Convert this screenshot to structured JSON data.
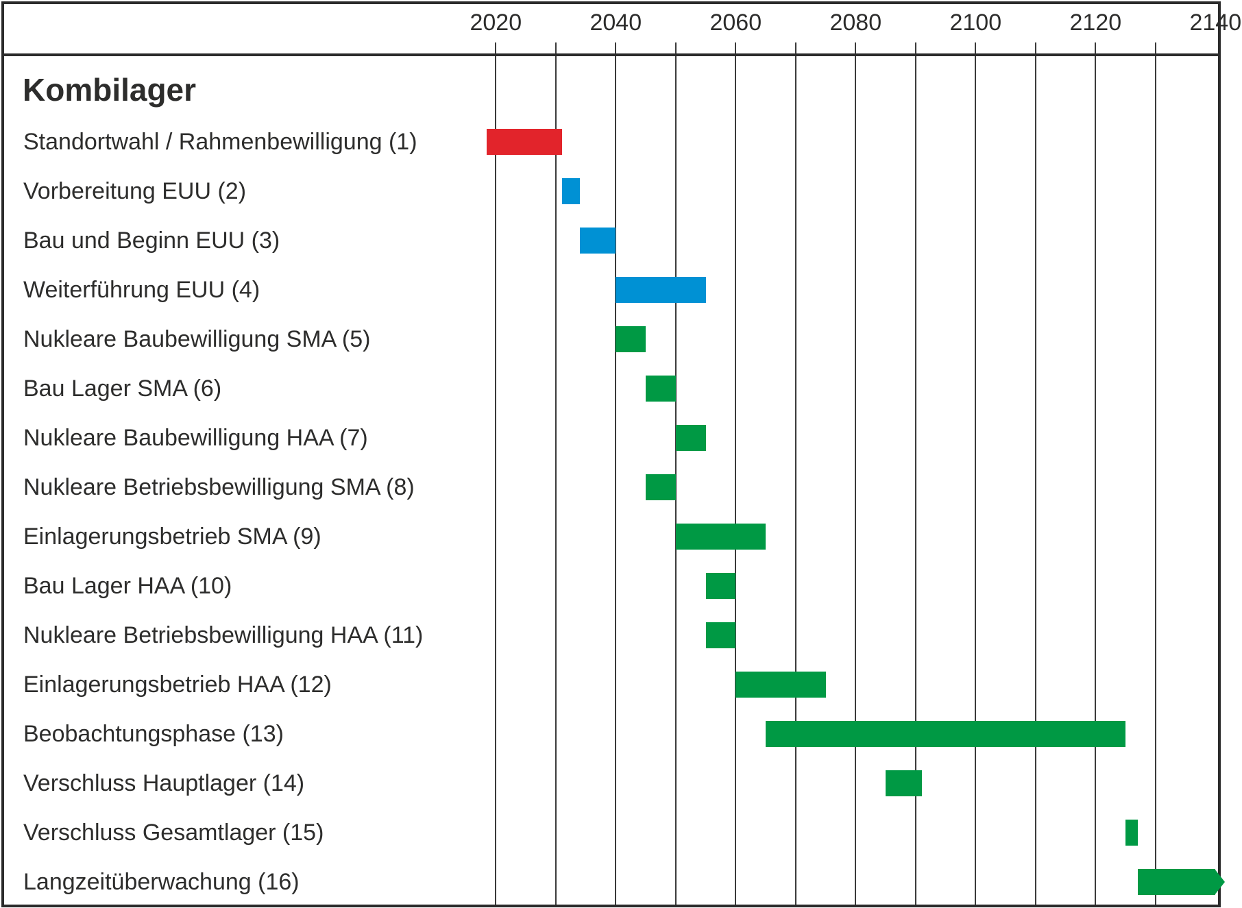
{
  "title": "Kombilager",
  "chart_data": {
    "type": "gantt",
    "title": "Kombilager",
    "axis": {
      "unit": "year",
      "min": 2020,
      "max": 2140,
      "gridline_step": 10,
      "label_step": 20,
      "tick_labels": [
        "2020",
        "2040",
        "2060",
        "2080",
        "2100",
        "2120",
        "2140"
      ],
      "position": "top",
      "grid": true
    },
    "palette": {
      "red": "#E2242B",
      "blue": "#0091D4",
      "green": "#009944"
    },
    "frame_color": "#2b2b2b",
    "gridline_color": "#3a3a3a",
    "tasks": [
      {
        "id": 1,
        "label": "Standortwahl / Rahmenbewilligung (1)",
        "start": 2018.5,
        "end": 2031,
        "color": "red",
        "arrow": false
      },
      {
        "id": 2,
        "label": "Vorbereitung EUU (2)",
        "start": 2031,
        "end": 2034,
        "color": "blue",
        "arrow": false
      },
      {
        "id": 3,
        "label": "Bau und Beginn EUU (3)",
        "start": 2034,
        "end": 2040,
        "color": "blue",
        "arrow": false
      },
      {
        "id": 4,
        "label": "Weiterführung EUU (4)",
        "start": 2040,
        "end": 2055,
        "color": "blue",
        "arrow": false
      },
      {
        "id": 5,
        "label": "Nukleare Baubewilligung SMA (5)",
        "start": 2040,
        "end": 2045,
        "color": "green",
        "arrow": false
      },
      {
        "id": 6,
        "label": "Bau Lager SMA (6)",
        "start": 2045,
        "end": 2050,
        "color": "green",
        "arrow": false
      },
      {
        "id": 7,
        "label": "Nukleare Baubewilligung HAA (7)",
        "start": 2050,
        "end": 2055,
        "color": "green",
        "arrow": false
      },
      {
        "id": 8,
        "label": "Nukleare Betriebsbewilligung SMA (8)",
        "start": 2045,
        "end": 2050,
        "color": "green",
        "arrow": false
      },
      {
        "id": 9,
        "label": "Einlagerungsbetrieb SMA (9)",
        "start": 2050,
        "end": 2065,
        "color": "green",
        "arrow": false
      },
      {
        "id": 10,
        "label": "Bau Lager HAA (10)",
        "start": 2055,
        "end": 2060,
        "color": "green",
        "arrow": false
      },
      {
        "id": 11,
        "label": "Nukleare Betriebsbewilligung HAA (11)",
        "start": 2055,
        "end": 2060,
        "color": "green",
        "arrow": false
      },
      {
        "id": 12,
        "label": "Einlagerungsbetrieb HAA (12)",
        "start": 2060,
        "end": 2075,
        "color": "green",
        "arrow": false
      },
      {
        "id": 13,
        "label": "Beobachtungsphase (13)",
        "start": 2065,
        "end": 2125,
        "color": "green",
        "arrow": false
      },
      {
        "id": 14,
        "label": "Verschluss Hauptlager (14)",
        "start": 2085,
        "end": 2091,
        "color": "green",
        "arrow": false
      },
      {
        "id": 15,
        "label": "Verschluss Gesamtlager (15)",
        "start": 2125,
        "end": 2127,
        "color": "green",
        "arrow": false
      },
      {
        "id": 16,
        "label": "Langzeitüberwachung (16)",
        "start": 2127,
        "end": 2140,
        "color": "green",
        "arrow": true
      }
    ]
  }
}
